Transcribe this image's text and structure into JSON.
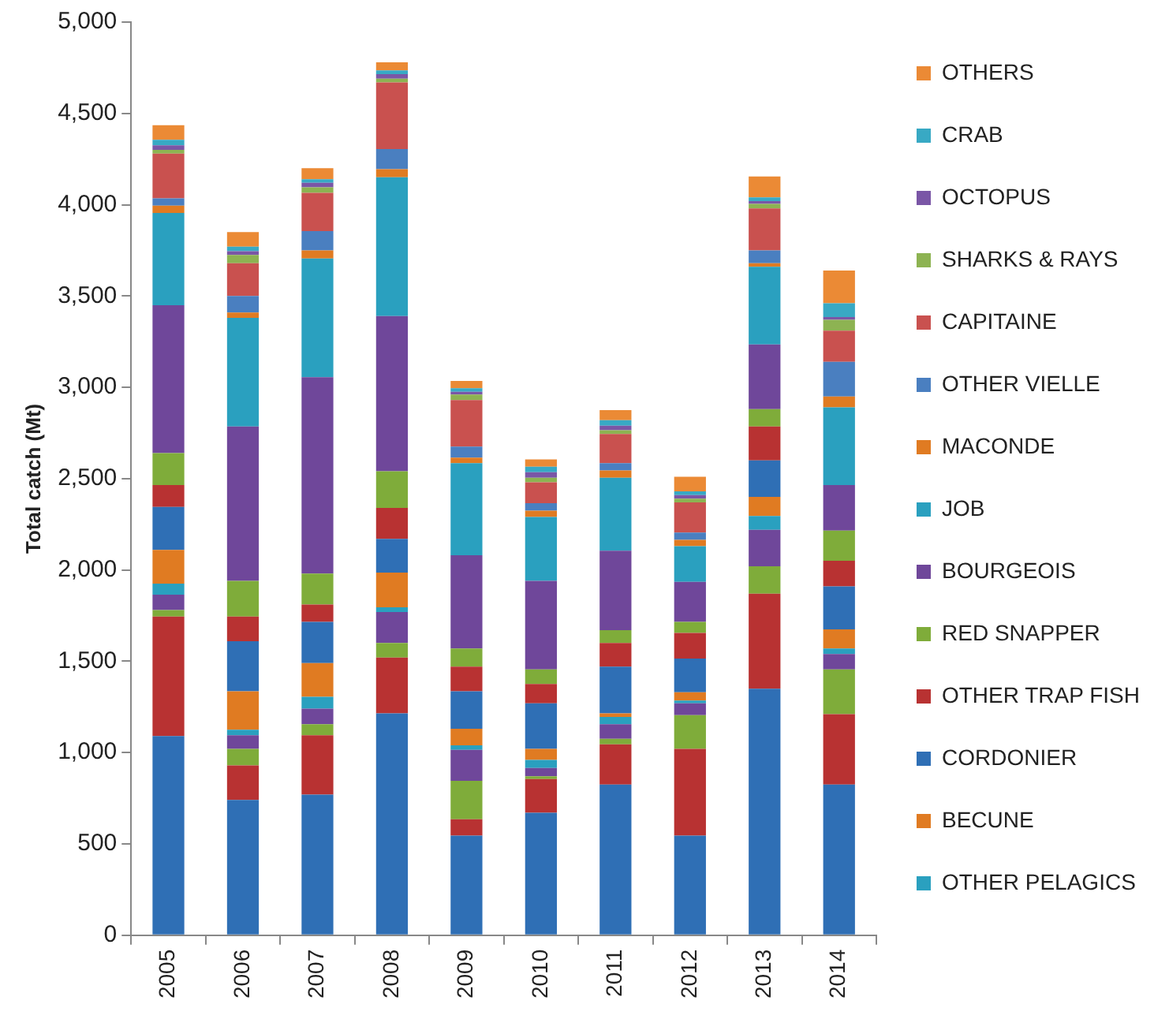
{
  "chart_data": {
    "type": "bar",
    "stacked": true,
    "ylabel": "Total catch (Mt)",
    "categories": [
      "2005",
      "2006",
      "2007",
      "2008",
      "2009",
      "2010",
      "2011",
      "2012",
      "2013",
      "2014"
    ],
    "ylim": [
      0,
      5000
    ],
    "yticks": [
      {
        "value": 0,
        "label": "0"
      },
      {
        "value": 500,
        "label": "500"
      },
      {
        "value": 1000,
        "label": "1,000"
      },
      {
        "value": 1500,
        "label": "1,500"
      },
      {
        "value": 2000,
        "label": "2,000"
      },
      {
        "value": 2500,
        "label": "2,500"
      },
      {
        "value": 3000,
        "label": "3,000"
      },
      {
        "value": 3500,
        "label": "3,500"
      },
      {
        "value": 4000,
        "label": "4,000"
      },
      {
        "value": 4500,
        "label": "4,500"
      },
      {
        "value": 5000,
        "label": "5,000"
      }
    ],
    "grid": false,
    "legend": "right",
    "series": [
      {
        "color": "#2f6fb5",
        "values": [
          1090,
          740,
          770,
          1215,
          545,
          670,
          825,
          545,
          1350,
          825
        ]
      },
      {
        "color": "#b83232",
        "values": [
          655,
          190,
          325,
          305,
          90,
          185,
          220,
          475,
          520,
          385
        ]
      },
      {
        "color": "#7fac3a",
        "values": [
          35,
          90,
          60,
          80,
          210,
          15,
          30,
          185,
          150,
          245
        ]
      },
      {
        "color": "#6f479a",
        "values": [
          85,
          75,
          85,
          170,
          170,
          45,
          80,
          65,
          200,
          85
        ]
      },
      {
        "name": "OTHER PELAGICS",
        "color": "#2aa0bf",
        "values": [
          60,
          30,
          65,
          25,
          25,
          45,
          40,
          15,
          75,
          30
        ]
      },
      {
        "name": "BECUNE",
        "color": "#e07b22",
        "values": [
          185,
          210,
          185,
          190,
          90,
          60,
          20,
          45,
          105,
          105
        ]
      },
      {
        "name": "CORDONIER",
        "color": "#2f6fb5",
        "values": [
          235,
          275,
          225,
          185,
          205,
          250,
          255,
          185,
          200,
          235
        ]
      },
      {
        "name": "OTHER TRAP FISH",
        "color": "#b83232",
        "values": [
          120,
          135,
          95,
          170,
          135,
          105,
          130,
          140,
          185,
          140
        ]
      },
      {
        "name": "RED SNAPPER",
        "color": "#7fac3a",
        "values": [
          175,
          195,
          170,
          200,
          100,
          80,
          70,
          60,
          95,
          165
        ]
      },
      {
        "name": "BOURGEOIS",
        "color": "#6f479a",
        "values": [
          810,
          845,
          1075,
          850,
          510,
          485,
          435,
          220,
          355,
          250
        ]
      },
      {
        "name": "JOB",
        "color": "#2aa0bf",
        "values": [
          505,
          595,
          650,
          760,
          505,
          350,
          400,
          195,
          425,
          425
        ]
      },
      {
        "name": "MACONDE",
        "color": "#e07b22",
        "values": [
          40,
          30,
          45,
          45,
          30,
          35,
          40,
          35,
          20,
          60
        ]
      },
      {
        "name": "OTHER VIELLE",
        "color": "#4a7fc0",
        "values": [
          40,
          90,
          105,
          110,
          60,
          40,
          40,
          40,
          70,
          190
        ]
      },
      {
        "name": "CAPITAINE",
        "color": "#c9514f",
        "values": [
          245,
          180,
          210,
          365,
          255,
          115,
          160,
          165,
          230,
          170
        ]
      },
      {
        "name": "SHARKS & RAYS",
        "color": "#8db352",
        "values": [
          20,
          45,
          30,
          20,
          30,
          25,
          20,
          20,
          25,
          60
        ]
      },
      {
        "name": "OCTOPUS",
        "color": "#7a56a6",
        "values": [
          25,
          20,
          25,
          25,
          15,
          30,
          25,
          20,
          15,
          15
        ]
      },
      {
        "name": "CRAB",
        "color": "#38a9c4",
        "values": [
          30,
          25,
          20,
          20,
          20,
          30,
          30,
          20,
          20,
          75
        ]
      },
      {
        "name": "OTHERS",
        "color": "#eb8a35",
        "values": [
          80,
          80,
          60,
          45,
          40,
          40,
          55,
          80,
          115,
          180
        ]
      }
    ]
  }
}
